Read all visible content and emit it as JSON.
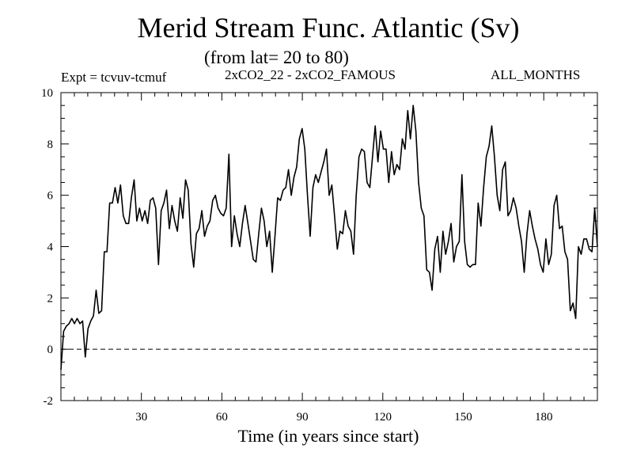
{
  "chart_data": {
    "type": "line",
    "title": "Merid Stream Func. Atlantic (Sv)",
    "subtitle": "(from lat= 20 to 80)",
    "expt_label": "Expt = tcvuv-tcmuf",
    "diff_label": "2xCO2_22 - 2xCO2_FAMOUS",
    "period_label": "ALL_MONTHS",
    "xlabel": "Time (in years since start)",
    "ylabel": "",
    "xlim": [
      0,
      200
    ],
    "ylim": [
      -2,
      10
    ],
    "x_ticks": [
      30,
      60,
      90,
      120,
      150,
      180
    ],
    "y_ticks": [
      -2,
      0,
      2,
      4,
      6,
      8,
      10
    ],
    "zero_line": "dashed",
    "grid": false,
    "series": [
      {
        "values": [
          -0.8,
          0.7,
          0.9,
          1.0,
          1.2,
          1.0,
          1.2,
          1.0,
          1.1,
          -0.3,
          0.8,
          1.1,
          1.3,
          2.3,
          1.4,
          1.5,
          3.8,
          3.8,
          5.7,
          5.7,
          6.3,
          5.7,
          6.4,
          5.2,
          4.9,
          4.9,
          5.9,
          6.6,
          5.0,
          5.5,
          5.0,
          5.4,
          4.9,
          5.8,
          5.9,
          5.5,
          3.3,
          5.4,
          5.7,
          6.2,
          4.7,
          5.6,
          5.0,
          4.6,
          5.9,
          5.1,
          6.6,
          6.2,
          4.1,
          3.2,
          4.5,
          4.7,
          5.4,
          4.4,
          4.8,
          5.0,
          5.8,
          6.0,
          5.5,
          5.3,
          5.2,
          5.5,
          7.6,
          4.0,
          5.2,
          4.5,
          4.0,
          4.9,
          5.6,
          4.9,
          4.2,
          3.5,
          3.4,
          4.5,
          5.5,
          5.0,
          4.0,
          4.6,
          3.0,
          4.4,
          5.9,
          5.8,
          6.2,
          6.3,
          7.0,
          6.0,
          6.7,
          7.1,
          8.2,
          8.6,
          7.8,
          6.0,
          4.4,
          6.3,
          6.8,
          6.5,
          6.9,
          7.3,
          7.8,
          6.0,
          6.4,
          5.2,
          3.9,
          4.6,
          4.5,
          5.4,
          4.8,
          4.6,
          3.7,
          6.0,
          7.5,
          7.8,
          7.7,
          6.5,
          6.3,
          7.5,
          8.7,
          7.3,
          8.5,
          7.8,
          7.8,
          6.5,
          7.7,
          6.8,
          7.2,
          7.0,
          8.2,
          7.8,
          9.3,
          8.2,
          9.5,
          8.5,
          6.5,
          5.5,
          5.2,
          3.1,
          3.0,
          2.3,
          3.9,
          4.4,
          3.0,
          4.6,
          3.7,
          4.2,
          4.9,
          3.4,
          4.0,
          4.2,
          6.8,
          4.2,
          3.3,
          3.2,
          3.3,
          3.3,
          5.7,
          4.8,
          6.3,
          7.5,
          7.9,
          8.7,
          7.5,
          6.0,
          5.4,
          7.0,
          7.3,
          5.2,
          5.4,
          5.9,
          5.5,
          4.8,
          4.2,
          3.0,
          4.5,
          5.4,
          4.8,
          4.3,
          3.9,
          3.3,
          3.0,
          4.3,
          3.3,
          3.7,
          5.6,
          6.0,
          4.7,
          4.8,
          3.8,
          3.5,
          1.5,
          1.8,
          1.2,
          4.0,
          3.7,
          4.3,
          4.3,
          3.9,
          3.8,
          5.5,
          4.0
        ]
      }
    ]
  }
}
